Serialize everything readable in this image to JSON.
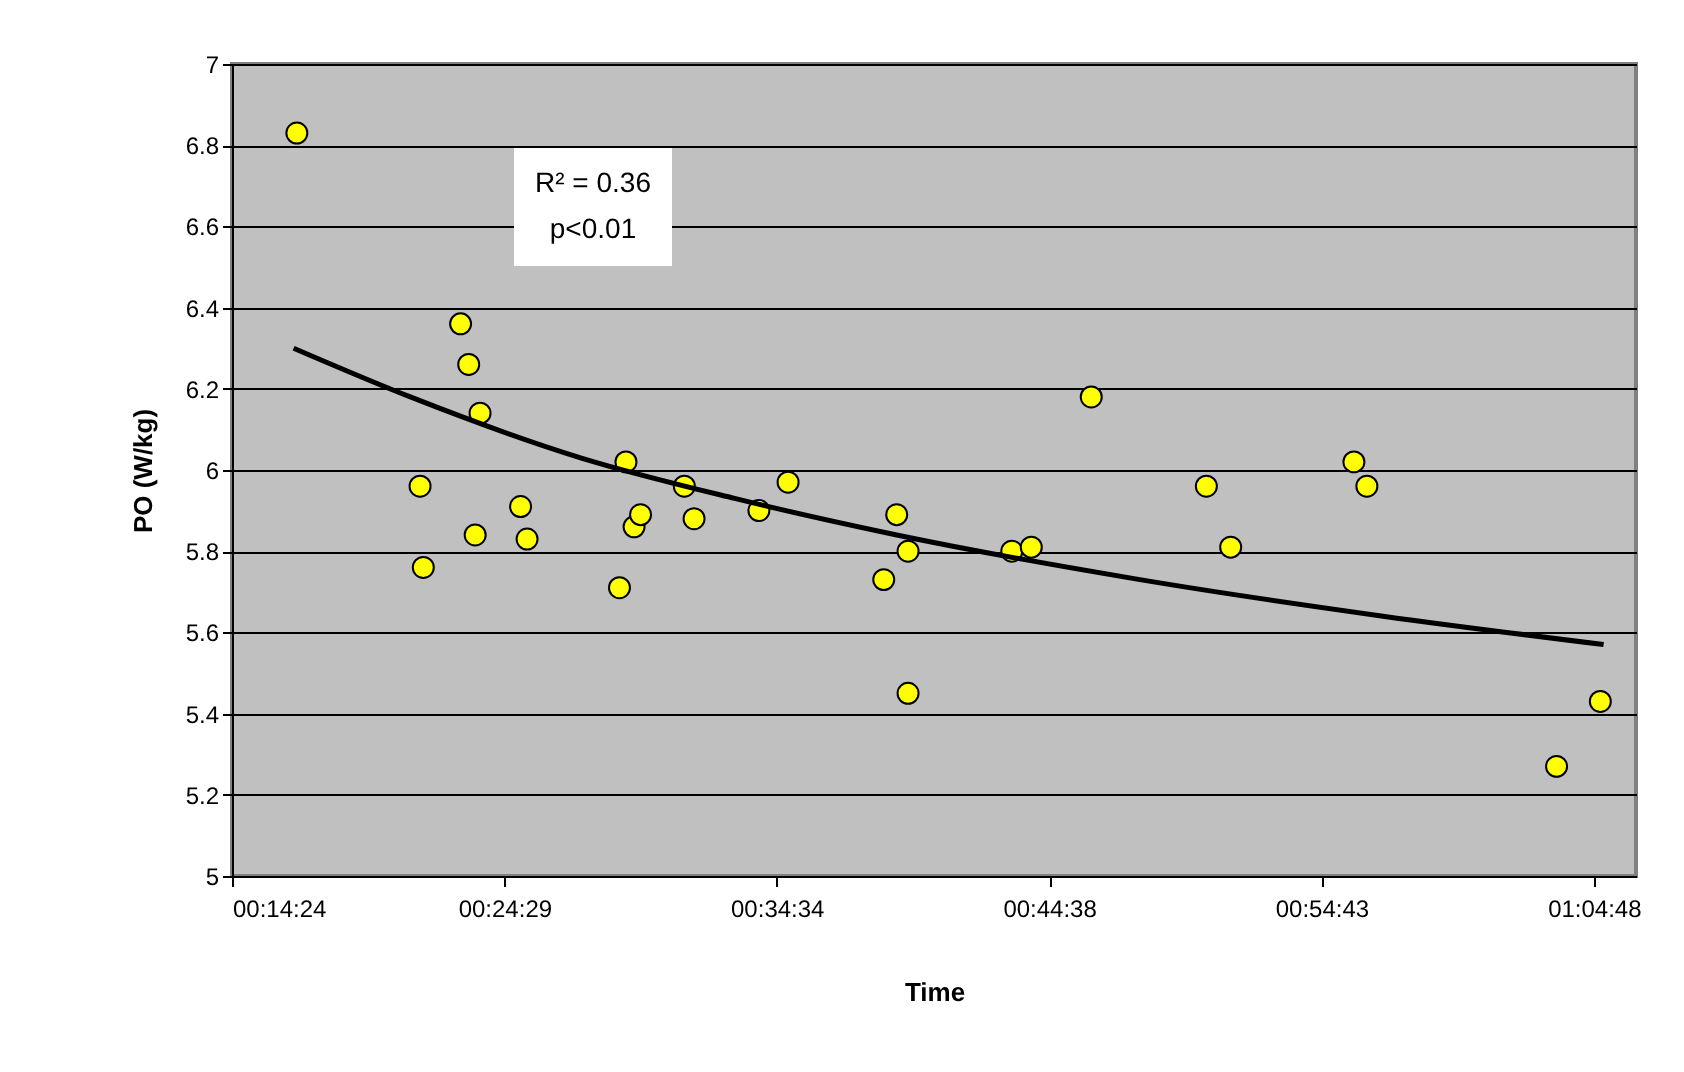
{
  "chart_data": {
    "type": "scatter",
    "xlabel": "Time",
    "ylabel": "PO (W/kg)",
    "annotations": [
      "R² = 0.36",
      "p<0.01"
    ],
    "xlim": [
      0.24,
      1.106
    ],
    "xticks": [
      {
        "value": 0.24,
        "label": "00:14:24"
      },
      {
        "value": 0.408,
        "label": "00:24:29"
      },
      {
        "value": 0.576,
        "label": "00:34:34"
      },
      {
        "value": 0.744,
        "label": "00:44:38"
      },
      {
        "value": 0.912,
        "label": "00:54:43"
      },
      {
        "value": 1.08,
        "label": "01:04:48"
      }
    ],
    "ylim": [
      5,
      7
    ],
    "yticks": [
      5,
      5.2,
      5.4,
      5.6,
      5.8,
      6,
      6.2,
      6.4,
      6.6,
      6.8,
      7
    ],
    "grid": "y",
    "series": [
      {
        "color": "#ffff00",
        "marker": "circle",
        "x": [
          0.28,
          0.356,
          0.358,
          0.381,
          0.386,
          0.393,
          0.39,
          0.418,
          0.422,
          0.479,
          0.483,
          0.488,
          0.492,
          0.519,
          0.525,
          0.565,
          0.583,
          0.642,
          0.65,
          0.657,
          0.657,
          0.721,
          0.733,
          0.77,
          0.841,
          0.856,
          0.932,
          0.94,
          1.057,
          1.084
        ],
        "values": [
          6.83,
          5.96,
          5.76,
          6.36,
          6.26,
          6.14,
          5.84,
          5.91,
          5.83,
          5.71,
          6.02,
          5.86,
          5.89,
          5.96,
          5.88,
          5.9,
          5.97,
          5.73,
          5.89,
          5.8,
          5.45,
          5.8,
          5.81,
          6.18,
          5.96,
          5.81,
          6.02,
          5.96,
          5.27,
          5.43
        ]
      },
      {
        "type": "line",
        "color": "#000000",
        "marker": "none",
        "line_style": "solid",
        "x": [
          0.278,
          0.35,
          0.455,
          0.55,
          0.65,
          0.8,
          0.95,
          1.086
        ],
        "values": [
          6.3,
          6.18,
          6.03,
          5.93,
          5.84,
          5.73,
          5.64,
          5.57
        ]
      }
    ]
  }
}
